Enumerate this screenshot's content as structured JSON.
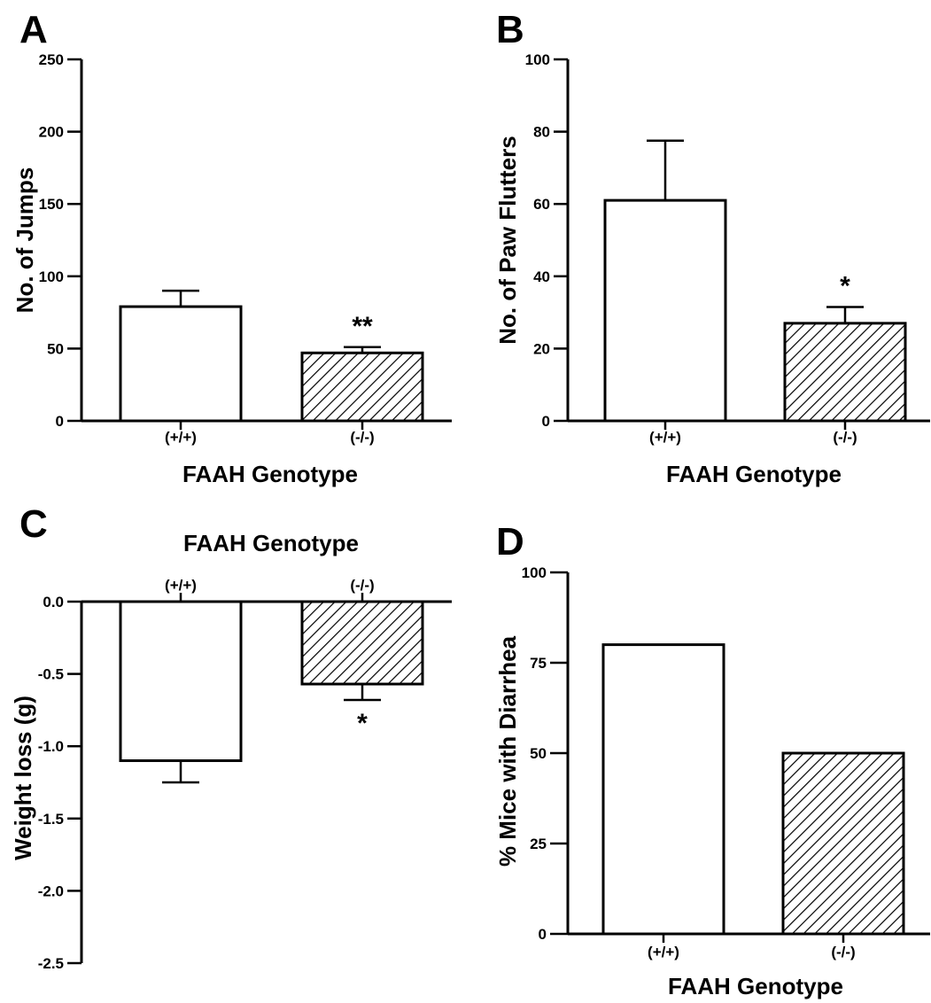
{
  "panels": [
    {
      "letter": "A",
      "chart_data": {
        "type": "bar",
        "categories": [
          "(+/+)",
          "(-/-)"
        ],
        "values": [
          79,
          47
        ],
        "errors": [
          11,
          4
        ],
        "patterns": [
          "none",
          "hatch"
        ],
        "significance": [
          "",
          "**"
        ],
        "ylabel": "No. of Jumps",
        "xlabel": "FAAH Genotype",
        "ylim": [
          0,
          250
        ],
        "yticks": [
          "0",
          "50",
          "100",
          "150",
          "200",
          "250"
        ],
        "ytick_values": [
          0,
          50,
          100,
          150,
          200,
          250
        ]
      }
    },
    {
      "letter": "B",
      "chart_data": {
        "type": "bar",
        "categories": [
          "(+/+)",
          "(-/-)"
        ],
        "values": [
          61,
          27
        ],
        "errors": [
          16.5,
          4.5
        ],
        "patterns": [
          "none",
          "hatch"
        ],
        "significance": [
          "",
          "*"
        ],
        "ylabel": "No. of Paw Flutters",
        "xlabel": "FAAH Genotype",
        "ylim": [
          0,
          100
        ],
        "yticks": [
          "0",
          "20",
          "40",
          "60",
          "80",
          "100"
        ],
        "ytick_values": [
          0,
          20,
          40,
          60,
          80,
          100
        ]
      }
    },
    {
      "letter": "C",
      "chart_data": {
        "type": "bar",
        "categories": [
          "(+/+)",
          "(-/-)"
        ],
        "values": [
          -1.1,
          -0.57
        ],
        "errors": [
          0.15,
          0.11
        ],
        "patterns": [
          "none",
          "hatch"
        ],
        "significance": [
          "",
          "*"
        ],
        "ylabel": "Weight loss (g)",
        "xlabel": "FAAH Genotype",
        "ylim": [
          -2.5,
          0
        ],
        "yticks": [
          "0.0",
          "-0.5",
          "-1.0",
          "-1.5",
          "-2.0",
          "-2.5"
        ],
        "ytick_values": [
          0,
          -0.5,
          -1.0,
          -1.5,
          -2.0,
          -2.5
        ]
      }
    },
    {
      "letter": "D",
      "chart_data": {
        "type": "bar",
        "categories": [
          "(+/+)",
          "(-/-)"
        ],
        "values": [
          80,
          50
        ],
        "errors": [
          0,
          0
        ],
        "patterns": [
          "none",
          "hatch"
        ],
        "significance": [
          "",
          ""
        ],
        "ylabel": "% Mice with Diarrhea",
        "xlabel": "FAAH Genotype",
        "ylim": [
          0,
          100
        ],
        "yticks": [
          "0",
          "25",
          "50",
          "75",
          "100"
        ],
        "ytick_values": [
          0,
          25,
          50,
          75,
          100
        ]
      }
    }
  ]
}
